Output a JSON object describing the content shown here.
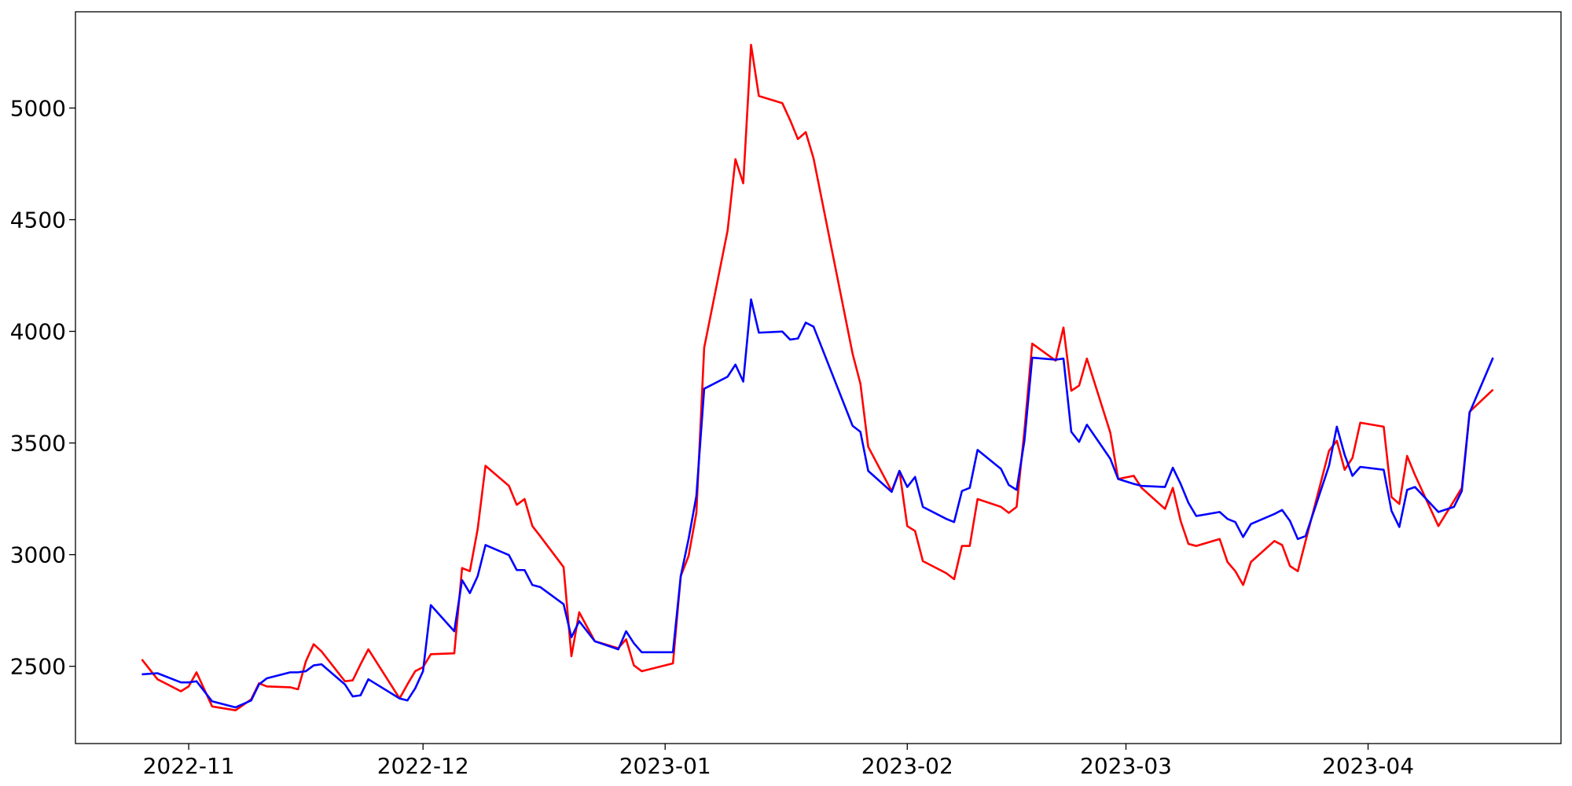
{
  "chart_data": {
    "type": "line",
    "x": [
      19291,
      19293,
      19296,
      19297,
      19298,
      19300,
      19303,
      19305,
      19306,
      19307,
      19310,
      19311,
      19312,
      19313,
      19314,
      19317,
      19318,
      19319,
      19320,
      19324,
      19325,
      19326,
      19327,
      19328,
      19331,
      19332,
      19333,
      19334,
      19335,
      19338,
      19339,
      19340,
      19341,
      19342,
      19345,
      19346,
      19347,
      19349,
      19352,
      19353,
      19354,
      19355,
      19359,
      19360,
      19361,
      19362,
      19363,
      19366,
      19367,
      19368,
      19369,
      19370,
      19373,
      19374,
      19375,
      19376,
      19377,
      19382,
      19383,
      19384,
      19387,
      19388,
      19389,
      19390,
      19391,
      19394,
      19395,
      19396,
      19397,
      19398,
      19401,
      19402,
      19403,
      19404,
      19405,
      19408,
      19409,
      19410,
      19411,
      19412,
      19415,
      19416,
      19418,
      19419,
      19422,
      19423,
      19424,
      19425,
      19426,
      19429,
      19430,
      19431,
      19432,
      19433,
      19436,
      19437,
      19438,
      19439,
      19440,
      19443,
      19444,
      19445,
      19446,
      19447,
      19450,
      19451,
      19452,
      19453,
      19454,
      19457,
      19459,
      19460,
      19461,
      19464
    ],
    "series": [
      {
        "color": "red",
        "values": [
          2531,
          2442,
          2388,
          2410,
          2473,
          2320,
          2303,
          2352,
          2424,
          2410,
          2406,
          2397,
          2522,
          2599,
          2567,
          2433,
          2437,
          2509,
          2576,
          2356,
          2419,
          2478,
          2496,
          2554,
          2558,
          2940,
          2926,
          3115,
          3398,
          3308,
          3223,
          3249,
          3128,
          3083,
          2944,
          2545,
          2742,
          2612,
          2581,
          2621,
          2504,
          2478,
          2513,
          2904,
          2994,
          3187,
          3927,
          4452,
          4771,
          4663,
          5283,
          5054,
          5022,
          4946,
          4861,
          4892,
          4775,
          3900,
          3766,
          3483,
          3285,
          3375,
          3128,
          3106,
          2971,
          2917,
          2890,
          3039,
          3039,
          3249,
          3214,
          3187,
          3214,
          3555,
          3945,
          3869,
          4017,
          3734,
          3757,
          3878,
          3546,
          3339,
          3353,
          3299,
          3205,
          3299,
          3151,
          3048,
          3039,
          3070,
          2967,
          2926,
          2864,
          2967,
          3061,
          3043,
          2949,
          2926,
          3061,
          3465,
          3510,
          3380,
          3433,
          3591,
          3573,
          3258,
          3227,
          3442,
          3357,
          3128,
          3241,
          3299,
          3640,
          3739
        ]
      },
      {
        "color": "blue",
        "values": [
          2464,
          2469,
          2428,
          2428,
          2433,
          2343,
          2316,
          2347,
          2419,
          2446,
          2473,
          2473,
          2478,
          2504,
          2509,
          2419,
          2365,
          2370,
          2442,
          2356,
          2347,
          2401,
          2478,
          2774,
          2657,
          2886,
          2828,
          2904,
          3043,
          2998,
          2931,
          2931,
          2864,
          2855,
          2778,
          2630,
          2702,
          2612,
          2576,
          2657,
          2603,
          2563,
          2563,
          2904,
          3070,
          3263,
          3743,
          3797,
          3851,
          3775,
          4143,
          3994,
          3999,
          3963,
          3968,
          4039,
          4021,
          3577,
          3550,
          3375,
          3281,
          3375,
          3303,
          3348,
          3214,
          3160,
          3146,
          3285,
          3299,
          3469,
          3384,
          3312,
          3290,
          3510,
          3882,
          3873,
          3878,
          3550,
          3505,
          3582,
          3429,
          3339,
          3317,
          3308,
          3303,
          3389,
          3317,
          3232,
          3173,
          3191,
          3160,
          3146,
          3079,
          3137,
          3182,
          3200,
          3151,
          3070,
          3083,
          3398,
          3573,
          3447,
          3353,
          3393,
          3380,
          3196,
          3124,
          3290,
          3303,
          3191,
          3214,
          3285,
          3636,
          3882
        ]
      }
    ],
    "xlim": [
      19282.5,
      19472.7
    ],
    "xticks": [
      {
        "value": 19297,
        "label": "2022-11"
      },
      {
        "value": 19327,
        "label": "2022-12"
      },
      {
        "value": 19358,
        "label": "2023-01"
      },
      {
        "value": 19389,
        "label": "2023-02"
      },
      {
        "value": 19417,
        "label": "2023-03"
      },
      {
        "value": 19448,
        "label": "2023-04"
      }
    ],
    "ylim": [
      2154,
      5431
    ],
    "yticks": [
      2500,
      3000,
      3500,
      4000,
      4500,
      5000
    ]
  }
}
